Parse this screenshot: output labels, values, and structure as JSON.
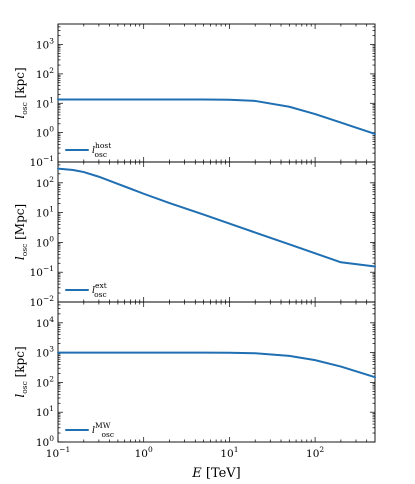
{
  "figure": {
    "x_axis": {
      "label_script": "E",
      "label_unit": "TeV",
      "scale": "log",
      "xlim": [
        0.1,
        500
      ],
      "major_ticks": [
        0.1,
        1,
        10,
        100
      ],
      "tick_labels": [
        [
          "10",
          "−1"
        ],
        [
          "10",
          "0"
        ],
        [
          "10",
          "1"
        ],
        [
          "10",
          "2"
        ]
      ]
    }
  },
  "chart_data": [
    {
      "type": "line",
      "ylabel_symbol": "l",
      "ylabel_subscript": "osc",
      "ylabel_unit": "kpc",
      "yscale": "log",
      "ylim": [
        0.1,
        5000
      ],
      "y_tick_labels": [
        [
          "10",
          "−1"
        ],
        [
          "10",
          "0"
        ],
        [
          "10",
          "1"
        ],
        [
          "10",
          "2"
        ],
        [
          "10",
          "3"
        ]
      ],
      "y_major_ticks": [
        0.1,
        1,
        10,
        100,
        1000
      ],
      "legend_position": "lower-left",
      "series": [
        {
          "legend_symbol": "l",
          "legend_superscript": "host",
          "legend_subscript": "osc",
          "x": [
            0.1,
            1,
            5,
            10,
            20,
            50,
            100,
            200,
            500
          ],
          "y": [
            13.5,
            13.5,
            13.4,
            13.2,
            12.0,
            7.6,
            4.3,
            2.2,
            0.9
          ]
        }
      ]
    },
    {
      "type": "line",
      "ylabel_symbol": "l",
      "ylabel_subscript": "osc",
      "ylabel_unit": "Mpc",
      "yscale": "log",
      "ylim": [
        0.01,
        500
      ],
      "y_tick_labels": [
        [
          "10",
          "−2"
        ],
        [
          "10",
          "−1"
        ],
        [
          "10",
          "0"
        ],
        [
          "10",
          "1"
        ],
        [
          "10",
          "2"
        ]
      ],
      "y_major_ticks": [
        0.01,
        0.1,
        1,
        10,
        100
      ],
      "legend_position": "lower-left",
      "series": [
        {
          "legend_symbol": "l",
          "legend_superscript": "ext",
          "legend_subscript": "osc",
          "x": [
            0.1,
            0.15,
            0.2,
            0.3,
            0.5,
            1,
            2,
            5,
            10,
            20,
            50,
            100,
            200,
            500
          ],
          "y": [
            300,
            270,
            230,
            160,
            92,
            43,
            21,
            8.6,
            4.3,
            2.15,
            0.86,
            0.43,
            0.215,
            0.155
          ]
        }
      ]
    },
    {
      "type": "line",
      "ylabel_symbol": "l",
      "ylabel_subscript": "osc",
      "ylabel_unit": "kpc",
      "yscale": "log",
      "ylim": [
        1,
        50000
      ],
      "y_tick_labels": [
        [
          "10",
          "0"
        ],
        [
          "10",
          "1"
        ],
        [
          "10",
          "2"
        ],
        [
          "10",
          "3"
        ],
        [
          "10",
          "4"
        ]
      ],
      "y_major_ticks": [
        1,
        10,
        100,
        1000,
        10000
      ],
      "legend_position": "lower-left",
      "series": [
        {
          "legend_symbol": "l",
          "legend_superscript": "MW",
          "legend_subscript": "osc",
          "x": [
            0.1,
            1,
            5,
            10,
            20,
            50,
            100,
            200,
            500
          ],
          "y": [
            1000,
            1000,
            998,
            990,
            950,
            780,
            560,
            340,
            150
          ]
        }
      ]
    }
  ],
  "colors": {
    "line": "#1f6fb2"
  }
}
